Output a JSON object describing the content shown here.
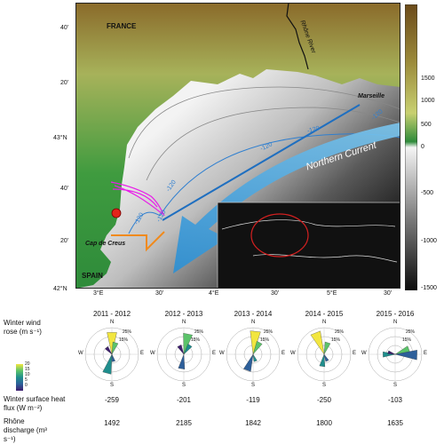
{
  "map": {
    "places": {
      "france": "FRANCE",
      "spain": "SPAIN",
      "rhone_river": "Rhône River",
      "marseille": "Marseille",
      "cap_de_creus": "Cap de Creus",
      "northern_current": "Northern Current"
    },
    "lat_ticks": [
      "40'",
      "20'",
      "43°N",
      "40'",
      "20'",
      "42°N"
    ],
    "lon_ticks": [
      "3°E",
      "30'",
      "4°E",
      "30'",
      "5°E",
      "30'"
    ],
    "isobath_labels": [
      "-120",
      "-120",
      "-120",
      "-120",
      "-120",
      "-120"
    ],
    "colorbar": {
      "ticks": [
        "1500",
        "1000",
        "500",
        "0",
        "-500",
        "-1000",
        "-1500"
      ],
      "range": [
        -1500,
        1500
      ]
    }
  },
  "bottom": {
    "row_labels": {
      "wind_rose": "Winter wind rose (m s⁻¹)",
      "heat_flux": "Winter surface heat flux (W m⁻²)",
      "discharge": "Rhône discharge (m³ s⁻¹)"
    },
    "wind_legend": [
      "20",
      "15",
      "10",
      "5",
      "0"
    ],
    "compass": {
      "n": "N",
      "s": "S",
      "e": "E",
      "w": "W",
      "r25": "25%",
      "r15": "15%"
    },
    "years": [
      {
        "label": "2011 - 2012",
        "heat_flux": "-259",
        "discharge": "1492"
      },
      {
        "label": "2012 - 2013",
        "heat_flux": "-201",
        "discharge": "2185"
      },
      {
        "label": "2013 - 2014",
        "heat_flux": "-119",
        "discharge": "1842"
      },
      {
        "label": "2014 - 2015",
        "heat_flux": "-250",
        "discharge": "1800"
      },
      {
        "label": "2015 - 2016",
        "heat_flux": "-103",
        "discharge": "1635"
      }
    ]
  },
  "colors": {
    "land_high": "#7a5a1e",
    "land_low": "#2e8b3a",
    "sea_shallow": "#f4f4f4",
    "sea_deep": "#111111",
    "current": "#2f95d6",
    "transect": "#1f6fc0",
    "glider": "#e81ee8",
    "orange_line": "#f08a1c",
    "marker": "#e2231a"
  }
}
